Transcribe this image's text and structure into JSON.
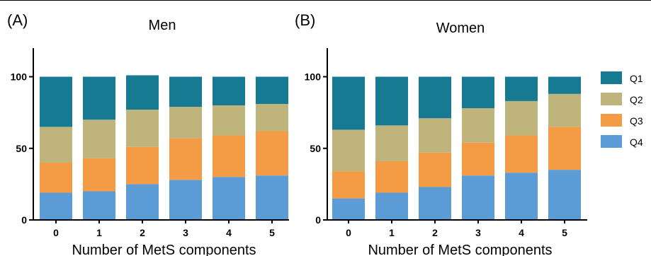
{
  "colors": {
    "Q1": "#167a93",
    "Q2": "#bfb57c",
    "Q3": "#f39c45",
    "Q4": "#5b9bd6",
    "axis": "#000000"
  },
  "legend": {
    "position": "right",
    "items": [
      "Q1",
      "Q2",
      "Q3",
      "Q4"
    ]
  },
  "chart_data": [
    {
      "type": "bar",
      "stacked": true,
      "panel_label": "(A)",
      "title": "Men",
      "xlabel": "Number of MetS components",
      "ylabel": "",
      "ylim": [
        0,
        120
      ],
      "yticks": [
        0,
        50,
        100
      ],
      "categories": [
        "0",
        "1",
        "2",
        "3",
        "4",
        "5"
      ],
      "series": [
        {
          "name": "Q4",
          "values": [
            19,
            20,
            25,
            28,
            30,
            31
          ]
        },
        {
          "name": "Q3",
          "values": [
            21,
            23,
            26,
            29,
            29,
            31
          ]
        },
        {
          "name": "Q2",
          "values": [
            25,
            27,
            26,
            22,
            21,
            19
          ]
        },
        {
          "name": "Q1",
          "values": [
            35,
            30,
            24,
            21,
            20,
            19
          ]
        }
      ]
    },
    {
      "type": "bar",
      "stacked": true,
      "panel_label": "(B)",
      "title": "Women",
      "xlabel": "Number of MetS components",
      "ylabel": "",
      "ylim": [
        0,
        120
      ],
      "yticks": [
        0,
        50,
        100
      ],
      "categories": [
        "0",
        "1",
        "2",
        "3",
        "4",
        "5"
      ],
      "series": [
        {
          "name": "Q4",
          "values": [
            15,
            19,
            23,
            31,
            33,
            35
          ]
        },
        {
          "name": "Q3",
          "values": [
            19,
            22,
            24,
            23,
            26,
            30
          ]
        },
        {
          "name": "Q2",
          "values": [
            29,
            25,
            24,
            24,
            24,
            23
          ]
        },
        {
          "name": "Q1",
          "values": [
            37,
            34,
            29,
            22,
            17,
            12
          ]
        }
      ]
    }
  ]
}
